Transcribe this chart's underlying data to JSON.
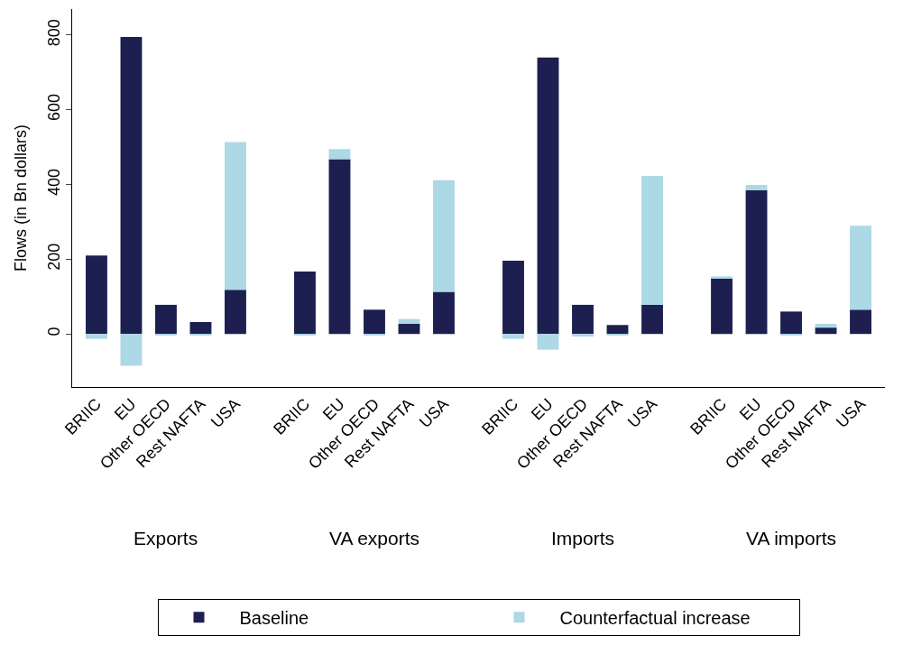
{
  "chart_data": {
    "type": "bar",
    "stacked": true,
    "ylabel": "Flows (in Bn dollars)",
    "categories": [
      "BRIIC",
      "EU",
      "Other OECD",
      "Rest NAFTA",
      "USA",
      null,
      "BRIIC",
      "EU",
      "Other OECD",
      "Rest NAFTA",
      "USA",
      null,
      "BRIIC",
      "EU",
      "Other OECD",
      "Rest NAFTA",
      "USA",
      null,
      "BRIIC",
      "EU",
      "Other OECD",
      "Rest NAFTA",
      "USA"
    ],
    "series": [
      {
        "name": "Baseline",
        "color": "#1c1f4f",
        "values": [
          210,
          795,
          78,
          32,
          118,
          null,
          167,
          468,
          65,
          27,
          113,
          null,
          196,
          740,
          78,
          24,
          78,
          null,
          150,
          385,
          60,
          17,
          65
        ]
      },
      {
        "name": "Counterfactual increase",
        "color": "#add8e6",
        "values": [
          -13,
          -85,
          -3,
          -2,
          396,
          null,
          -3,
          27,
          -2,
          13,
          299,
          null,
          -13,
          -42,
          -7,
          -3,
          345,
          null,
          4,
          14,
          -2,
          10,
          225
        ]
      }
    ],
    "annotations": [
      "Exports",
      "VA exports",
      "Imports",
      "VA imports"
    ],
    "ylim": [
      -142,
      870
    ],
    "yticks": [
      0,
      200,
      400,
      600,
      800
    ],
    "legend": "bottom"
  }
}
